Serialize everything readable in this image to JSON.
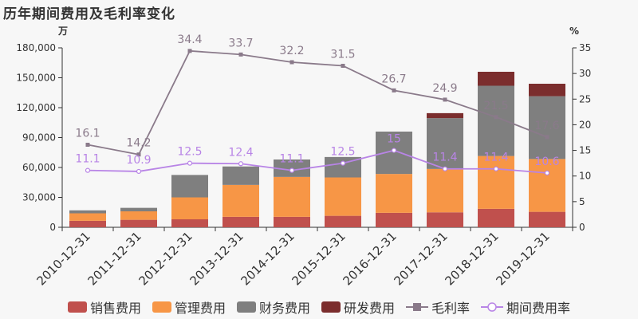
{
  "title": "历年期间费用及毛利率变化",
  "chart_data": {
    "type": "bar",
    "categories": [
      "2010-12-31",
      "2011-12-31",
      "2012-12-31",
      "2013-12-31",
      "2014-12-31",
      "2015-12-31",
      "2016-12-31",
      "2017-12-31",
      "2018-12-31",
      "2019-12-31"
    ],
    "left_unit": "万",
    "right_unit": "%",
    "ylim_left": [
      0,
      180000
    ],
    "yticks_left": [
      "0",
      "30,000",
      "60,000",
      "90,000",
      "120,000",
      "150,000",
      "180,000"
    ],
    "yticks_left_values": [
      0,
      30000,
      60000,
      90000,
      120000,
      150000,
      180000
    ],
    "ylim_right": [
      0,
      35
    ],
    "yticks_right": [
      0,
      5,
      10,
      15,
      20,
      25,
      30,
      35
    ],
    "bar_series": [
      {
        "name": "销售费用",
        "color": "#c0504d",
        "values": [
          6500,
          7500,
          8000,
          10500,
          10500,
          11500,
          14500,
          15000,
          18500,
          15500
        ]
      },
      {
        "name": "管理费用",
        "color": "#f79646",
        "values": [
          7500,
          8500,
          22000,
          32000,
          40000,
          38500,
          39000,
          43500,
          53000,
          53000
        ]
      },
      {
        "name": "财务费用",
        "color": "#7f7f7f",
        "values": [
          3000,
          3500,
          22500,
          18500,
          17500,
          20500,
          42500,
          51000,
          70500,
          63000
        ]
      },
      {
        "name": "研发费用",
        "color": "#7b2d2d",
        "values": [
          0,
          0,
          0,
          0,
          0,
          0,
          0,
          5000,
          14000,
          12500
        ]
      }
    ],
    "line_series": [
      {
        "name": "毛利率",
        "color": "#8a7a8a",
        "values": [
          16.1,
          14.2,
          34.4,
          33.7,
          32.2,
          31.5,
          26.7,
          24.9,
          21.5,
          17.6
        ]
      },
      {
        "name": "期间费用率",
        "color": "#b884e6",
        "values": [
          11.1,
          10.9,
          12.5,
          12.4,
          11.1,
          12.5,
          15,
          11.4,
          11.4,
          10.6
        ]
      }
    ]
  },
  "legend": [
    "销售费用",
    "管理费用",
    "财务费用",
    "研发费用",
    "毛利率",
    "期间费用率"
  ]
}
